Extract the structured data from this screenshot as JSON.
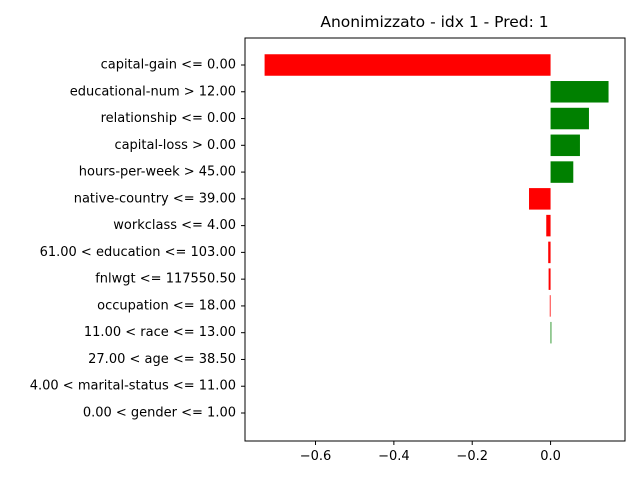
{
  "chart_data": {
    "type": "bar",
    "orientation": "horizontal",
    "title": "Anonimizzato - idx 1 - Pred: 1",
    "xlabel": "",
    "ylabel": "",
    "xlim": [
      -0.78,
      0.19
    ],
    "xticks": [
      -0.6,
      -0.4,
      -0.2,
      0.0
    ],
    "xtick_labels": [
      "−0.6",
      "−0.4",
      "−0.2",
      "0.0"
    ],
    "grid": false,
    "colors": {
      "positive": "#008000",
      "negative": "#ff0000"
    },
    "categories": [
      "capital-gain <= 0.00",
      "educational-num > 12.00",
      "relationship <= 0.00",
      "capital-loss > 0.00",
      "hours-per-week > 45.00",
      "native-country <= 39.00",
      "workclass <= 4.00",
      "61.00 < education <= 103.00",
      "fnlwgt <= 117550.50",
      "occupation <= 18.00",
      "11.00 < race <= 13.00",
      "27.00 < age <= 38.50",
      "4.00 < marital-status <= 11.00",
      "0.00 < gender <= 1.00"
    ],
    "values": [
      -0.73,
      0.148,
      0.098,
      0.075,
      0.058,
      -0.055,
      -0.011,
      -0.006,
      -0.005,
      -0.002,
      0.002,
      0.0,
      0.0,
      0.0
    ]
  }
}
